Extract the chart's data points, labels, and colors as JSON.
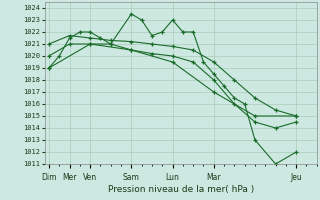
{
  "title": "Pression niveau de la mer( hPa )",
  "ylim": [
    1011,
    1024.5
  ],
  "yticks": [
    1011,
    1012,
    1013,
    1014,
    1015,
    1016,
    1017,
    1018,
    1019,
    1020,
    1021,
    1022,
    1023,
    1024
  ],
  "background_color": "#cce8e0",
  "grid_color": "#aaccbb",
  "line_color": "#1a6b2a",
  "major_xtick_labels": [
    "Dim",
    "Mer",
    "Ven",
    "Sam",
    "Lun",
    "Mar",
    "Jeu"
  ],
  "major_xtick_positions": [
    0,
    1,
    2,
    4,
    6,
    8,
    12
  ],
  "xlim": [
    -0.2,
    12.8
  ],
  "series": [
    {
      "x": [
        0,
        0.5,
        1,
        1.5,
        2,
        2.5,
        3,
        4,
        4.5,
        5,
        5.5,
        6,
        6.5,
        7,
        7.5,
        8,
        8.5,
        9,
        9.5,
        10,
        11,
        12
      ],
      "y": [
        1019,
        1020,
        1021.5,
        1022,
        1022,
        1021.5,
        1021,
        1023.5,
        1023,
        1021.7,
        1022,
        1023,
        1022,
        1022,
        1019.5,
        1018.5,
        1017.5,
        1016.5,
        1016,
        1013,
        1011,
        1012
      ]
    },
    {
      "x": [
        0,
        1,
        2,
        3,
        4,
        5,
        6,
        7,
        8,
        9,
        10,
        11,
        12
      ],
      "y": [
        1021,
        1021.7,
        1021.5,
        1021.3,
        1021.2,
        1021,
        1020.8,
        1020.5,
        1019.5,
        1018,
        1016.5,
        1015.5,
        1015
      ]
    },
    {
      "x": [
        0,
        1,
        2,
        3,
        4,
        5,
        6,
        7,
        8,
        9,
        10,
        11,
        12
      ],
      "y": [
        1020,
        1021,
        1021,
        1021,
        1020.5,
        1020.2,
        1020,
        1019.5,
        1018,
        1016,
        1014.5,
        1014,
        1014.5
      ]
    },
    {
      "x": [
        0,
        2,
        4,
        6,
        8,
        10,
        12
      ],
      "y": [
        1019,
        1021,
        1020.5,
        1019.5,
        1017,
        1015,
        1015
      ]
    }
  ]
}
